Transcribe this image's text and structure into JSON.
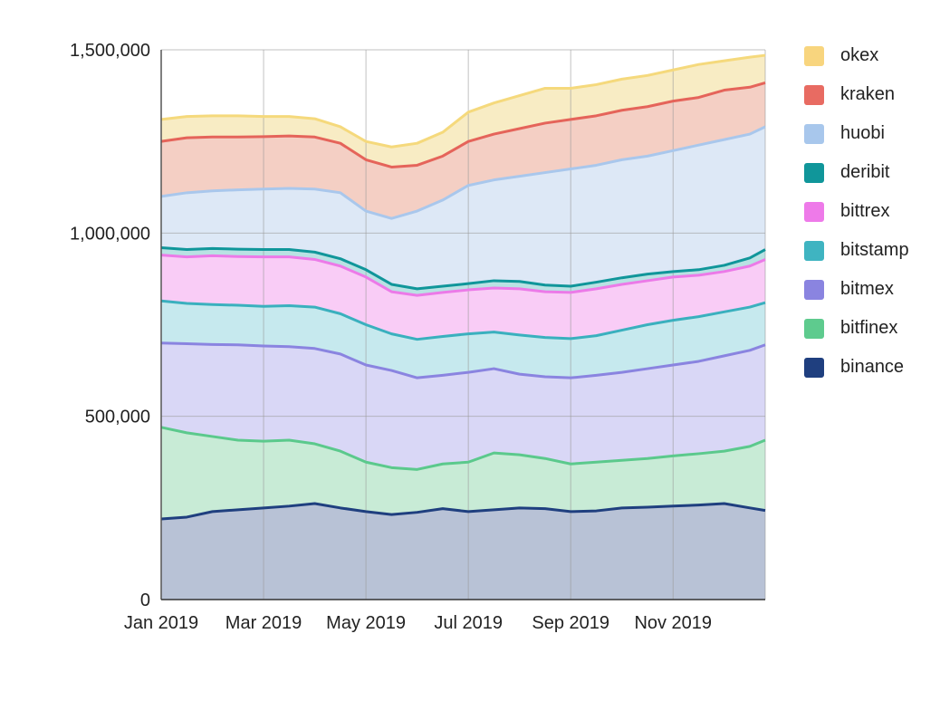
{
  "chart_data": {
    "type": "area",
    "stacked": true,
    "title": "",
    "xlabel": "",
    "ylabel": "",
    "ylim": [
      0,
      1500000
    ],
    "yticks": [
      {
        "value": 0,
        "label": "0"
      },
      {
        "value": 500000,
        "label": "500,000"
      },
      {
        "value": 1000000,
        "label": "1,000,000"
      },
      {
        "value": 1500000,
        "label": "1,500,000"
      }
    ],
    "xlim": [
      0,
      11.8
    ],
    "xticks": [
      {
        "value": 0,
        "label": "Jan 2019"
      },
      {
        "value": 2,
        "label": "Mar 2019"
      },
      {
        "value": 4,
        "label": "May 2019"
      },
      {
        "value": 6,
        "label": "Jul 2019"
      },
      {
        "value": 8,
        "label": "Sep 2019"
      },
      {
        "value": 10,
        "label": "Nov 2019"
      }
    ],
    "grid": true,
    "legend_position": "right",
    "x": [
      0,
      0.5,
      1,
      1.5,
      2,
      2.5,
      3,
      3.5,
      4,
      4.5,
      5,
      5.5,
      6,
      6.5,
      7,
      7.5,
      8,
      8.5,
      9,
      9.5,
      10,
      10.5,
      11,
      11.5,
      11.8
    ],
    "cumulative_series": [
      {
        "name": "binance",
        "color": "#1f3f7f",
        "fill": "#b8c2d6",
        "values": [
          220000,
          225000,
          240000,
          245000,
          250000,
          255000,
          262000,
          250000,
          240000,
          232000,
          238000,
          248000,
          240000,
          245000,
          250000,
          248000,
          240000,
          242000,
          250000,
          252000,
          255000,
          258000,
          262000,
          250000,
          243000
        ]
      },
      {
        "name": "bitfinex",
        "color": "#5bc98c",
        "fill": "#c8ebd6",
        "values": [
          470000,
          455000,
          445000,
          435000,
          432000,
          435000,
          425000,
          405000,
          375000,
          360000,
          355000,
          370000,
          375000,
          400000,
          395000,
          385000,
          370000,
          375000,
          380000,
          385000,
          392000,
          398000,
          405000,
          418000,
          435000
        ]
      },
      {
        "name": "bitmex",
        "color": "#8a84e0",
        "fill": "#d9d7f6",
        "values": [
          700000,
          698000,
          696000,
          695000,
          692000,
          690000,
          685000,
          670000,
          640000,
          625000,
          605000,
          612000,
          620000,
          630000,
          615000,
          608000,
          605000,
          612000,
          620000,
          630000,
          640000,
          650000,
          665000,
          680000,
          695000
        ]
      },
      {
        "name": "bitstamp",
        "color": "#3ab0be",
        "fill": "#c6e9ee",
        "values": [
          815000,
          808000,
          805000,
          803000,
          800000,
          802000,
          798000,
          780000,
          750000,
          725000,
          710000,
          718000,
          725000,
          730000,
          722000,
          715000,
          712000,
          720000,
          735000,
          750000,
          762000,
          772000,
          785000,
          798000,
          810000
        ]
      },
      {
        "name": "bittrex",
        "color": "#ec7ae8",
        "fill": "#f9ccf6",
        "values": [
          940000,
          935000,
          938000,
          936000,
          935000,
          935000,
          928000,
          910000,
          880000,
          840000,
          830000,
          838000,
          845000,
          850000,
          848000,
          840000,
          838000,
          848000,
          860000,
          870000,
          880000,
          885000,
          895000,
          910000,
          928000
        ]
      },
      {
        "name": "deribit",
        "color": "#10969a",
        "fill": "#b9e2e3",
        "values": [
          960000,
          955000,
          958000,
          956000,
          955000,
          955000,
          948000,
          930000,
          900000,
          860000,
          848000,
          855000,
          862000,
          870000,
          868000,
          858000,
          855000,
          866000,
          878000,
          888000,
          895000,
          900000,
          912000,
          932000,
          955000
        ]
      },
      {
        "name": "huobi",
        "color": "#a9c7ec",
        "fill": "#dde8f6",
        "values": [
          1100000,
          1110000,
          1115000,
          1118000,
          1120000,
          1122000,
          1120000,
          1110000,
          1060000,
          1040000,
          1060000,
          1090000,
          1130000,
          1145000,
          1155000,
          1165000,
          1175000,
          1185000,
          1200000,
          1210000,
          1225000,
          1240000,
          1255000,
          1270000,
          1290000
        ]
      },
      {
        "name": "kraken",
        "color": "#e5645a",
        "fill": "#f4cfc4",
        "values": [
          1250000,
          1260000,
          1262000,
          1262000,
          1263000,
          1265000,
          1262000,
          1245000,
          1200000,
          1180000,
          1185000,
          1210000,
          1250000,
          1270000,
          1285000,
          1300000,
          1310000,
          1320000,
          1335000,
          1345000,
          1360000,
          1370000,
          1390000,
          1398000,
          1410000
        ]
      },
      {
        "name": "okex",
        "color": "#f5d97c",
        "fill": "#f8ecc4",
        "values": [
          1310000,
          1318000,
          1320000,
          1320000,
          1318000,
          1318000,
          1312000,
          1290000,
          1250000,
          1235000,
          1245000,
          1275000,
          1330000,
          1355000,
          1375000,
          1395000,
          1395000,
          1405000,
          1420000,
          1430000,
          1445000,
          1460000,
          1470000,
          1480000,
          1485000
        ]
      }
    ],
    "legend": [
      {
        "label": "okex",
        "color": "#f8d57e"
      },
      {
        "label": "kraken",
        "color": "#e86b62"
      },
      {
        "label": "huobi",
        "color": "#a8c7ec"
      },
      {
        "label": "deribit",
        "color": "#10969a"
      },
      {
        "label": "bittrex",
        "color": "#ee7ae9"
      },
      {
        "label": "bitstamp",
        "color": "#3fb4c1"
      },
      {
        "label": "bitmex",
        "color": "#8a84e0"
      },
      {
        "label": "bitfinex",
        "color": "#5ecb8e"
      },
      {
        "label": "binance",
        "color": "#1f3f7f"
      }
    ]
  }
}
